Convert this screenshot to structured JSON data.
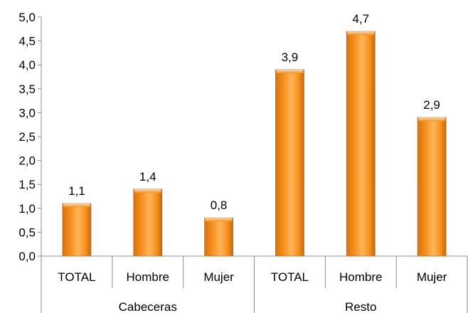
{
  "chart_data": {
    "type": "bar",
    "title": "",
    "xlabel": "",
    "ylabel": "",
    "ylim": [
      0,
      5
    ],
    "y_ticks": [
      "0,0",
      "0,5",
      "1,0",
      "1,5",
      "2,0",
      "2,5",
      "3,0",
      "3,5",
      "4,0",
      "4,5",
      "5,0"
    ],
    "groups": [
      {
        "name": "Cabeceras",
        "categories": [
          "TOTAL",
          "Hombre",
          "Mujer"
        ]
      },
      {
        "name": "Resto",
        "categories": [
          "TOTAL",
          "Hombre",
          "Mujer"
        ]
      }
    ],
    "categories": [
      "TOTAL",
      "Hombre",
      "Mujer",
      "TOTAL",
      "Hombre",
      "Mujer"
    ],
    "values": [
      1.1,
      1.4,
      0.8,
      3.9,
      4.7,
      2.9
    ],
    "value_labels": [
      "1,1",
      "1,4",
      "0,8",
      "3,9",
      "4,7",
      "2,9"
    ],
    "grid": false,
    "legend": "none",
    "colors": {
      "bar_light": "#FFB55C",
      "bar_mid": "#F7921E",
      "bar_dark": "#D8730E",
      "axis": "#8C8C8C"
    }
  }
}
